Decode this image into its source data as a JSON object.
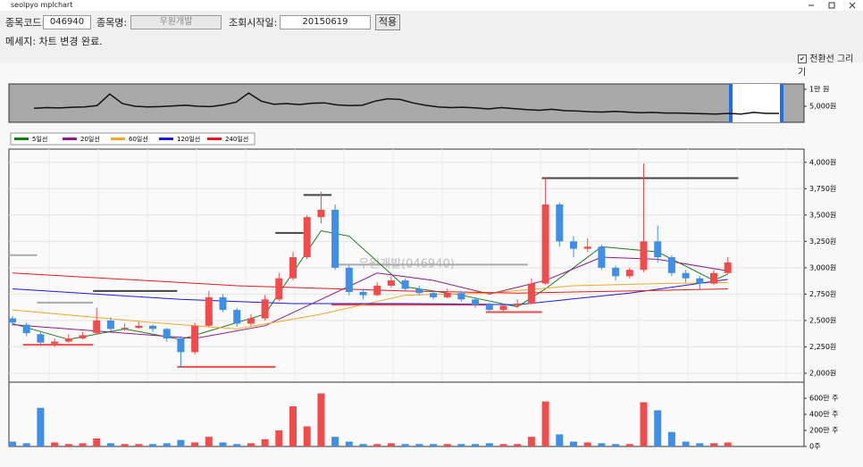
{
  "window": {
    "title": "seolpyo mplchart"
  },
  "toolbar": {
    "code_label": "종목코드:",
    "code": "046940",
    "name_label": "종목명:",
    "name": "우원개발",
    "date_label": "조회시작일:",
    "date": "20150619",
    "apply": "적용"
  },
  "message": "메세지: 차트 변경 완료.",
  "checkbox": {
    "label": "전환선 그리기",
    "checked": true
  },
  "chart_data": [
    {
      "type": "line",
      "color": "#111111",
      "background": "#a9a9a9",
      "values": [
        4400,
        4600,
        4500,
        4700,
        4800,
        5200,
        8600,
        5800,
        5000,
        4800,
        4900,
        5100,
        5300,
        5000,
        4900,
        5400,
        6200,
        8900,
        6500,
        5600,
        5800,
        5500,
        5900,
        6000,
        5400,
        5200,
        5300,
        6500,
        7200,
        7000,
        6000,
        5300,
        4800,
        4600,
        4700,
        4500,
        4200,
        4600,
        4300,
        4000,
        3800,
        4100,
        3700,
        3600,
        3400,
        3300,
        3500,
        3300,
        3100,
        3200,
        3000,
        3000,
        2900,
        2800,
        2700,
        2900,
        2700,
        3200,
        2900,
        2900
      ],
      "ylim": [
        260,
        11580
      ],
      "yticks": [
        {
          "value": 10000,
          "label": "1만 원"
        },
        {
          "value": 5000,
          "label": "5,000원"
        }
      ]
    },
    {
      "type": "candlestick",
      "watermark": "우원개발(046940)",
      "up_color": "#f24b4b",
      "down_color": "#3e8fe5",
      "grid": true,
      "open": [
        2520,
        2460,
        2370,
        2280,
        2300,
        2330,
        2380,
        2500,
        2420,
        2430,
        2450,
        2420,
        2330,
        2200,
        2450,
        2720,
        2600,
        2470,
        2520,
        2700,
        2900,
        3100,
        3480,
        3550,
        3000,
        2770,
        2740,
        2830,
        2880,
        2800,
        2760,
        2720,
        2760,
        2700,
        2650,
        2600,
        2640,
        2660,
        2850,
        3600,
        3250,
        3180,
        3200,
        3000,
        2920,
        2980,
        3250,
        3100,
        2950,
        2900,
        2850,
        2950
      ],
      "high": [
        2540,
        2480,
        2400,
        2330,
        2370,
        2390,
        2620,
        2530,
        2470,
        2490,
        2460,
        2430,
        2350,
        2480,
        2780,
        2750,
        2620,
        2560,
        2740,
        2950,
        3150,
        3500,
        3720,
        3600,
        3020,
        2800,
        2860,
        2920,
        2900,
        2830,
        2780,
        2800,
        2780,
        2720,
        2670,
        2660,
        2700,
        2900,
        3860,
        3620,
        3300,
        3280,
        3220,
        3020,
        3000,
        3990,
        3400,
        3120,
        2980,
        2920,
        2980,
        3100
      ],
      "low": [
        2450,
        2350,
        2260,
        2250,
        2290,
        2320,
        2370,
        2400,
        2400,
        2420,
        2390,
        2300,
        2050,
        2180,
        2440,
        2580,
        2440,
        2450,
        2500,
        2680,
        2880,
        3080,
        3420,
        2980,
        2740,
        2700,
        2730,
        2810,
        2780,
        2740,
        2700,
        2710,
        2680,
        2620,
        2570,
        2590,
        2620,
        2650,
        2840,
        3200,
        3100,
        3150,
        2980,
        2880,
        2900,
        2960,
        3050,
        2920,
        2860,
        2800,
        2840,
        2940
      ],
      "close": [
        2480,
        2380,
        2290,
        2300,
        2330,
        2360,
        2500,
        2420,
        2430,
        2450,
        2420,
        2330,
        2200,
        2450,
        2720,
        2600,
        2470,
        2520,
        2700,
        2900,
        3100,
        3480,
        3550,
        3000,
        2770,
        2740,
        2830,
        2880,
        2800,
        2760,
        2720,
        2760,
        2700,
        2650,
        2600,
        2640,
        2660,
        2850,
        3600,
        3250,
        3180,
        3200,
        3000,
        2920,
        2980,
        3250,
        3100,
        2950,
        2900,
        2850,
        2950,
        3050
      ],
      "series": [
        {
          "name": "5일선",
          "color": "#1a7a1a",
          "x": [
            0,
            4,
            8,
            12,
            14,
            18,
            22,
            24,
            28,
            32,
            36,
            38,
            42,
            46,
            50,
            51
          ],
          "values": [
            2470,
            2320,
            2420,
            2320,
            2400,
            2560,
            3350,
            3300,
            2820,
            2740,
            2630,
            2800,
            3200,
            3150,
            2880,
            2940
          ]
        },
        {
          "name": "20일선",
          "color": "#8e1a8e",
          "x": [
            0,
            8,
            13,
            18,
            22,
            26,
            30,
            34,
            38,
            42,
            46,
            51
          ],
          "values": [
            2460,
            2380,
            2330,
            2450,
            2700,
            2950,
            2880,
            2750,
            2880,
            3100,
            3080,
            2970
          ]
        },
        {
          "name": "60일선",
          "color": "#f5a623",
          "x": [
            0,
            10,
            16,
            22,
            28,
            34,
            40,
            46,
            51
          ],
          "values": [
            2600,
            2480,
            2420,
            2560,
            2740,
            2760,
            2830,
            2850,
            2860
          ]
        },
        {
          "name": "120일선",
          "color": "#1a1adc",
          "x": [
            0,
            12,
            20,
            28,
            36,
            44,
            51
          ],
          "values": [
            2800,
            2700,
            2660,
            2660,
            2650,
            2760,
            2890
          ]
        },
        {
          "name": "240일선",
          "color": "#e31a1a",
          "x": [
            0,
            16,
            28,
            36,
            44,
            51
          ],
          "values": [
            2950,
            2830,
            2780,
            2760,
            2780,
            2800
          ]
        }
      ],
      "levels": [
        {
          "start": 0,
          "end": 2,
          "value": 3120,
          "color": "#aaaaaa"
        },
        {
          "start": 2,
          "end": 6,
          "value": 2670,
          "color": "#aaaaaa"
        },
        {
          "start": 1,
          "end": 6,
          "value": 2270,
          "color": "#f24b4b"
        },
        {
          "start": 6,
          "end": 12,
          "value": 2780,
          "color": "#444444"
        },
        {
          "start": 12,
          "end": 19,
          "value": 2060,
          "color": "#f24b4b"
        },
        {
          "start": 19,
          "end": 21,
          "value": 3330,
          "color": "#444444"
        },
        {
          "start": 21,
          "end": 23,
          "value": 3690,
          "color": "#444444"
        },
        {
          "start": 23,
          "end": 34,
          "value": 2650,
          "color": "#f24b4b"
        },
        {
          "start": 23,
          "end": 37,
          "value": 3030,
          "color": "#aaaaaa"
        },
        {
          "start": 34,
          "end": 38,
          "value": 2580,
          "color": "#f24b4b"
        },
        {
          "start": 38,
          "end": 52,
          "value": 3850,
          "color": "#444444"
        }
      ],
      "ylim": [
        1915,
        4125
      ],
      "yticks": [
        {
          "value": 2000,
          "label": "2,000원"
        },
        {
          "value": 2250,
          "label": "2,250원"
        },
        {
          "value": 2500,
          "label": "2,500원"
        },
        {
          "value": 2750,
          "label": "2,750원"
        },
        {
          "value": 3000,
          "label": "3,000원"
        },
        {
          "value": 3250,
          "label": "3,250원"
        },
        {
          "value": 3500,
          "label": "3,500원"
        },
        {
          "value": 3750,
          "label": "3,750원"
        },
        {
          "value": 4000,
          "label": "4,000원"
        }
      ]
    },
    {
      "type": "volume",
      "values": [
        600000,
        400000,
        4800000,
        500000,
        300000,
        400000,
        1000000,
        400000,
        300000,
        300000,
        300000,
        400000,
        800000,
        500000,
        1200000,
        500000,
        300000,
        400000,
        900000,
        2000000,
        5000000,
        2500000,
        6600000,
        1200000,
        600000,
        300000,
        300000,
        400000,
        300000,
        300000,
        300000,
        300000,
        300000,
        300000,
        400000,
        300000,
        300000,
        1200000,
        5600000,
        1500000,
        600000,
        500000,
        400000,
        300000,
        300000,
        5500000,
        4500000,
        1800000,
        600000,
        400000,
        400000,
        500000
      ],
      "ylim": [
        0,
        8000000
      ],
      "yticks": [
        {
          "value": 0,
          "label": "0주"
        },
        {
          "value": 2000000,
          "label": "200만 주"
        },
        {
          "value": 4000000,
          "label": "400만 주"
        },
        {
          "value": 6000000,
          "label": "600만 주"
        }
      ]
    }
  ]
}
